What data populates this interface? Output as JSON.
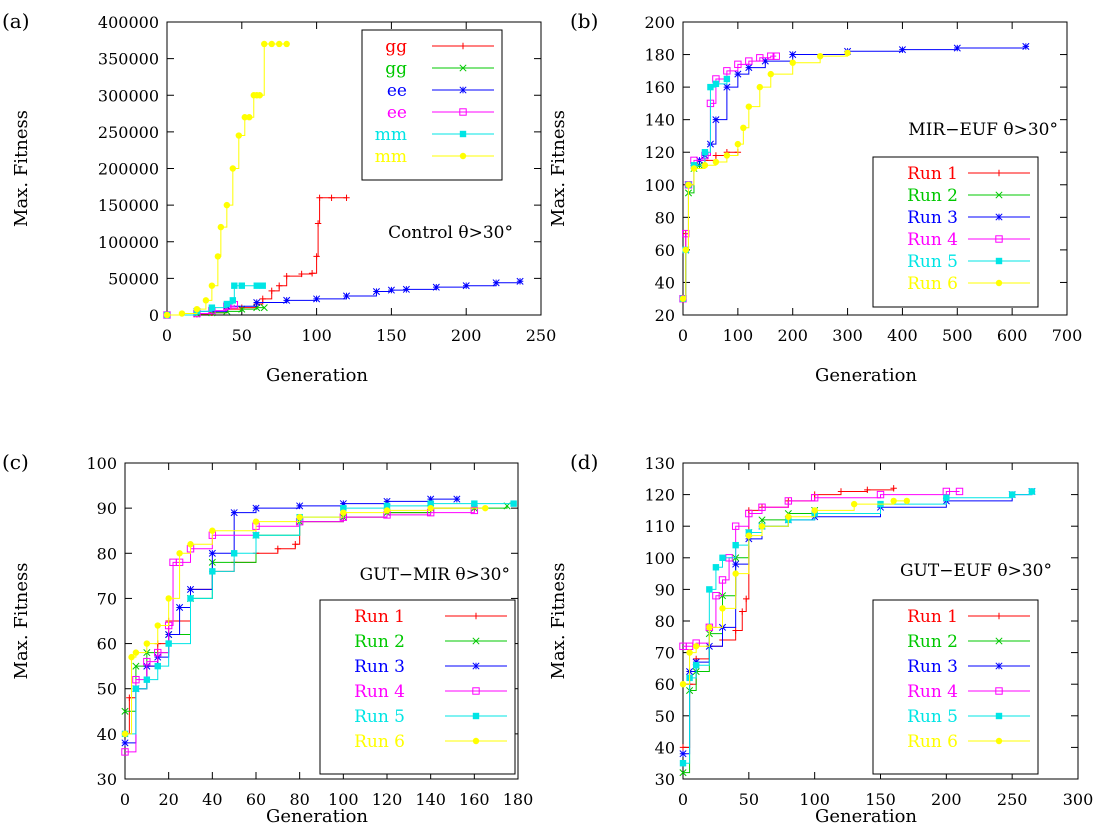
{
  "chart_data": [
    {
      "panel_label": "(a)",
      "type": "line",
      "annotation": "Control θ>30°",
      "xlabel": "Generation",
      "ylabel": "Max. Fitness",
      "xlim": [
        0,
        250
      ],
      "ylim": [
        0,
        400000
      ],
      "xticks": [
        0,
        50,
        100,
        150,
        200,
        250
      ],
      "yticks": [
        0,
        50000,
        100000,
        150000,
        200000,
        250000,
        300000,
        350000,
        400000
      ],
      "legend_position": "top-right",
      "series": [
        {
          "name": "gg",
          "color": "#ff0000",
          "marker": "plus",
          "x": [
            0,
            20,
            30,
            40,
            50,
            60,
            64,
            70,
            75,
            80,
            90,
            97,
            100,
            101,
            102,
            110,
            120
          ],
          "y": [
            0,
            1000,
            3000,
            8000,
            10000,
            15000,
            22000,
            33000,
            40000,
            53000,
            56000,
            57000,
            80000,
            125000,
            160000,
            160000,
            160000
          ]
        },
        {
          "name": "gg",
          "color": "#00c800",
          "marker": "cross",
          "x": [
            0,
            20,
            30,
            40,
            50,
            60,
            65
          ],
          "y": [
            0,
            1500,
            3000,
            5000,
            8000,
            10000,
            10000
          ]
        },
        {
          "name": "ee",
          "color": "#0000ff",
          "marker": "star",
          "x": [
            0,
            20,
            40,
            60,
            80,
            100,
            120,
            140,
            150,
            160,
            180,
            200,
            220,
            236
          ],
          "y": [
            0,
            5000,
            12000,
            17000,
            20000,
            22000,
            26000,
            32000,
            34000,
            35000,
            38000,
            40000,
            44000,
            46000
          ]
        },
        {
          "name": "ee",
          "color": "#ff00ff",
          "marker": "box",
          "x": [
            0,
            20,
            30,
            40,
            45
          ],
          "y": [
            0,
            2000,
            6000,
            12000,
            14000
          ]
        },
        {
          "name": "mm",
          "color": "#00e5e5",
          "marker": "filledbox",
          "x": [
            0,
            20,
            30,
            40,
            44,
            45,
            50,
            60,
            64
          ],
          "y": [
            0,
            5000,
            10000,
            15000,
            20000,
            40000,
            40000,
            40000,
            40000
          ]
        },
        {
          "name": "mm",
          "color": "#ffff00",
          "marker": "circle",
          "x": [
            0,
            10,
            20,
            26,
            30,
            34,
            36,
            40,
            44,
            48,
            52,
            55,
            58,
            60,
            62,
            65,
            70,
            75,
            80
          ],
          "y": [
            0,
            2000,
            8000,
            20000,
            40000,
            80000,
            120000,
            150000,
            200000,
            245000,
            270000,
            270000,
            300000,
            300000,
            300000,
            370000,
            370000,
            370000,
            370000
          ]
        }
      ]
    },
    {
      "panel_label": "(b)",
      "type": "line",
      "annotation": "MIR−EUF θ>30°",
      "xlabel": "Generation",
      "ylabel": "Max. Fitness",
      "xlim": [
        0,
        700
      ],
      "ylim": [
        20,
        200
      ],
      "xticks": [
        0,
        100,
        200,
        300,
        400,
        500,
        600,
        700
      ],
      "yticks": [
        20,
        40,
        60,
        80,
        100,
        120,
        140,
        160,
        180,
        200
      ],
      "legend_position": "lower-right",
      "series": [
        {
          "name": "Run 1",
          "color": "#ff0000",
          "marker": "plus",
          "x": [
            0,
            5,
            10,
            20,
            40,
            60,
            80,
            100
          ],
          "y": [
            30,
            70,
            100,
            112,
            115,
            118,
            120,
            120
          ]
        },
        {
          "name": "Run 2",
          "color": "#00c800",
          "marker": "cross",
          "x": [
            0,
            5,
            10,
            20,
            30
          ],
          "y": [
            30,
            60,
            95,
            110,
            112
          ]
        },
        {
          "name": "Run 3",
          "color": "#0000ff",
          "marker": "star",
          "x": [
            0,
            5,
            10,
            20,
            30,
            40,
            50,
            60,
            80,
            100,
            120,
            150,
            200,
            300,
            400,
            500,
            625
          ],
          "y": [
            30,
            60,
            100,
            112,
            115,
            118,
            125,
            140,
            160,
            168,
            172,
            176,
            180,
            182,
            183,
            184,
            185
          ]
        },
        {
          "name": "Run 4",
          "color": "#ff00ff",
          "marker": "box",
          "x": [
            0,
            5,
            10,
            20,
            40,
            50,
            60,
            80,
            100,
            120,
            140,
            160,
            170
          ],
          "y": [
            30,
            70,
            100,
            115,
            118,
            150,
            165,
            170,
            174,
            176,
            178,
            179,
            179
          ]
        },
        {
          "name": "Run 5",
          "color": "#00e5e5",
          "marker": "filledbox",
          "x": [
            0,
            5,
            10,
            20,
            40,
            50,
            60,
            80
          ],
          "y": [
            30,
            60,
            100,
            112,
            120,
            160,
            162,
            165
          ]
        },
        {
          "name": "Run 6",
          "color": "#ffff00",
          "marker": "circle",
          "x": [
            0,
            5,
            10,
            20,
            40,
            60,
            80,
            100,
            110,
            120,
            140,
            160,
            200,
            250,
            300
          ],
          "y": [
            30,
            60,
            100,
            110,
            112,
            114,
            118,
            125,
            135,
            148,
            160,
            168,
            175,
            179,
            181
          ]
        }
      ]
    },
    {
      "panel_label": "(c)",
      "type": "line",
      "annotation": "GUT−MIR θ>30°",
      "xlabel": "Generation",
      "ylabel": "Max. Fitness",
      "xlim": [
        0,
        180
      ],
      "ylim": [
        30,
        100
      ],
      "xticks": [
        0,
        20,
        40,
        60,
        80,
        100,
        120,
        140,
        160,
        180
      ],
      "yticks": [
        30,
        40,
        50,
        60,
        70,
        80,
        90,
        100
      ],
      "legend_position": "lower-right",
      "series": [
        {
          "name": "Run 1",
          "color": "#ff0000",
          "marker": "plus",
          "x": [
            0,
            2,
            5,
            10,
            15,
            20,
            30,
            40,
            50,
            60,
            70,
            78,
            80,
            100,
            120,
            140,
            160
          ],
          "y": [
            40,
            48,
            50,
            55,
            60,
            65,
            72,
            76,
            78,
            80,
            81,
            82,
            87,
            88,
            89,
            90,
            90
          ]
        },
        {
          "name": "Run 2",
          "color": "#00c800",
          "marker": "cross",
          "x": [
            0,
            5,
            10,
            20,
            30,
            40,
            60,
            80,
            100,
            120,
            140,
            160,
            175
          ],
          "y": [
            45,
            55,
            58,
            62,
            70,
            78,
            84,
            87,
            88,
            89,
            90,
            90,
            90.5
          ]
        },
        {
          "name": "Run 3",
          "color": "#0000ff",
          "marker": "star",
          "x": [
            0,
            5,
            10,
            15,
            20,
            25,
            30,
            40,
            50,
            60,
            80,
            100,
            120,
            140,
            152
          ],
          "y": [
            38,
            50,
            55,
            57,
            62,
            68,
            72,
            80,
            89,
            90,
            90.5,
            91,
            91.5,
            92,
            92
          ]
        },
        {
          "name": "Run 4",
          "color": "#ff00ff",
          "marker": "box",
          "x": [
            0,
            5,
            10,
            15,
            20,
            22,
            25,
            30,
            40,
            60,
            80,
            100,
            120,
            140,
            160
          ],
          "y": [
            36,
            52,
            56,
            58,
            64,
            78,
            78,
            81,
            84,
            86,
            87,
            88,
            88.5,
            89,
            89.5
          ]
        },
        {
          "name": "Run 5",
          "color": "#00e5e5",
          "marker": "filledbox",
          "x": [
            0,
            5,
            10,
            15,
            20,
            30,
            40,
            50,
            60,
            80,
            100,
            120,
            140,
            160,
            178
          ],
          "y": [
            40,
            50,
            52,
            55,
            60,
            70,
            76,
            80,
            84,
            88,
            90,
            90.5,
            91,
            91,
            91
          ]
        },
        {
          "name": "Run 6",
          "color": "#ffff00",
          "marker": "circle",
          "x": [
            0,
            3,
            5,
            10,
            15,
            20,
            25,
            30,
            40,
            60,
            80,
            100,
            120,
            140,
            165
          ],
          "y": [
            40,
            57,
            58,
            60,
            64,
            70,
            80,
            82,
            85,
            87,
            88,
            89,
            89.5,
            90,
            90
          ]
        }
      ]
    },
    {
      "panel_label": "(d)",
      "type": "line",
      "annotation": "GUT−EUF θ>30°",
      "xlabel": "Generation",
      "ylabel": "Max. Fitness",
      "xlim": [
        0,
        300
      ],
      "ylim": [
        30,
        130
      ],
      "xticks": [
        0,
        50,
        100,
        150,
        200,
        250,
        300
      ],
      "yticks": [
        30,
        40,
        50,
        60,
        70,
        80,
        90,
        100,
        110,
        120,
        130
      ],
      "legend_position": "lower-right",
      "series": [
        {
          "name": "Run 1",
          "color": "#ff0000",
          "marker": "plus",
          "x": [
            0,
            5,
            10,
            20,
            30,
            40,
            45,
            48,
            50,
            60,
            80,
            100,
            120,
            140,
            160
          ],
          "y": [
            40,
            60,
            68,
            72,
            74,
            77,
            83,
            87,
            115,
            116,
            118,
            120,
            121,
            121.5,
            122
          ]
        },
        {
          "name": "Run 2",
          "color": "#00c800",
          "marker": "cross",
          "x": [
            0,
            5,
            10,
            20,
            30,
            40,
            50,
            60,
            80,
            100
          ],
          "y": [
            32,
            58,
            64,
            76,
            88,
            100,
            108,
            112,
            114,
            115
          ]
        },
        {
          "name": "Run 3",
          "color": "#0000ff",
          "marker": "star",
          "x": [
            0,
            5,
            10,
            20,
            30,
            40,
            50,
            60,
            80,
            100,
            150,
            200,
            250,
            265
          ],
          "y": [
            38,
            64,
            67,
            72,
            78,
            98,
            106,
            110,
            112,
            113,
            116,
            118,
            120,
            121
          ]
        },
        {
          "name": "Run 4",
          "color": "#ff00ff",
          "marker": "box",
          "x": [
            0,
            5,
            10,
            20,
            25,
            30,
            35,
            40,
            50,
            60,
            80,
            100,
            150,
            200,
            210
          ],
          "y": [
            72,
            72,
            73,
            78,
            88,
            93,
            100,
            110,
            114,
            116,
            118,
            119,
            120,
            121,
            121
          ]
        },
        {
          "name": "Run 5",
          "color": "#00e5e5",
          "marker": "filledbox",
          "x": [
            0,
            5,
            10,
            20,
            25,
            30,
            40,
            50,
            60,
            80,
            100,
            150,
            200,
            250,
            265
          ],
          "y": [
            35,
            62,
            66,
            90,
            97,
            100,
            104,
            108,
            110,
            112,
            114,
            117,
            119,
            120,
            121
          ]
        },
        {
          "name": "Run 6",
          "color": "#ffff00",
          "marker": "circle",
          "x": [
            0,
            5,
            10,
            20,
            30,
            40,
            50,
            60,
            80,
            100,
            130,
            160,
            170
          ],
          "y": [
            60,
            70,
            72,
            78,
            84,
            95,
            107,
            110,
            113,
            115,
            117,
            118,
            118
          ]
        }
      ]
    }
  ]
}
